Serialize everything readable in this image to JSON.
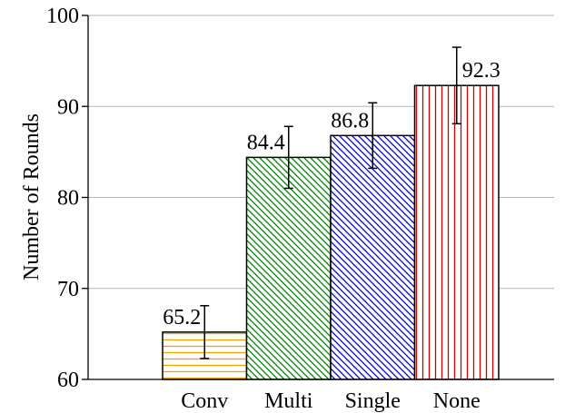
{
  "chart_data": {
    "type": "bar",
    "title": "",
    "xlabel": "",
    "ylabel": "Number of Rounds",
    "ylim": [
      60,
      100
    ],
    "yticks": [
      60,
      70,
      80,
      90,
      100
    ],
    "grid": true,
    "legend": "none",
    "categories": [
      "Conv",
      "Multi",
      "Single",
      "None"
    ],
    "values": [
      65.2,
      84.4,
      86.8,
      92.3
    ],
    "value_labels": [
      "65.2",
      "84.4",
      "86.8",
      "92.3"
    ],
    "error_low": [
      62.3,
      81.0,
      83.2,
      88.1
    ],
    "error_high": [
      68.1,
      87.8,
      90.4,
      96.5
    ],
    "bars": [
      {
        "color": "#e8a800",
        "hatch": "horizontal"
      },
      {
        "color": "#008000",
        "hatch": "diagonal-down"
      },
      {
        "color": "#0000cc",
        "hatch": "diagonal-down"
      },
      {
        "color": "#cc0000",
        "hatch": "vertical"
      }
    ]
  }
}
